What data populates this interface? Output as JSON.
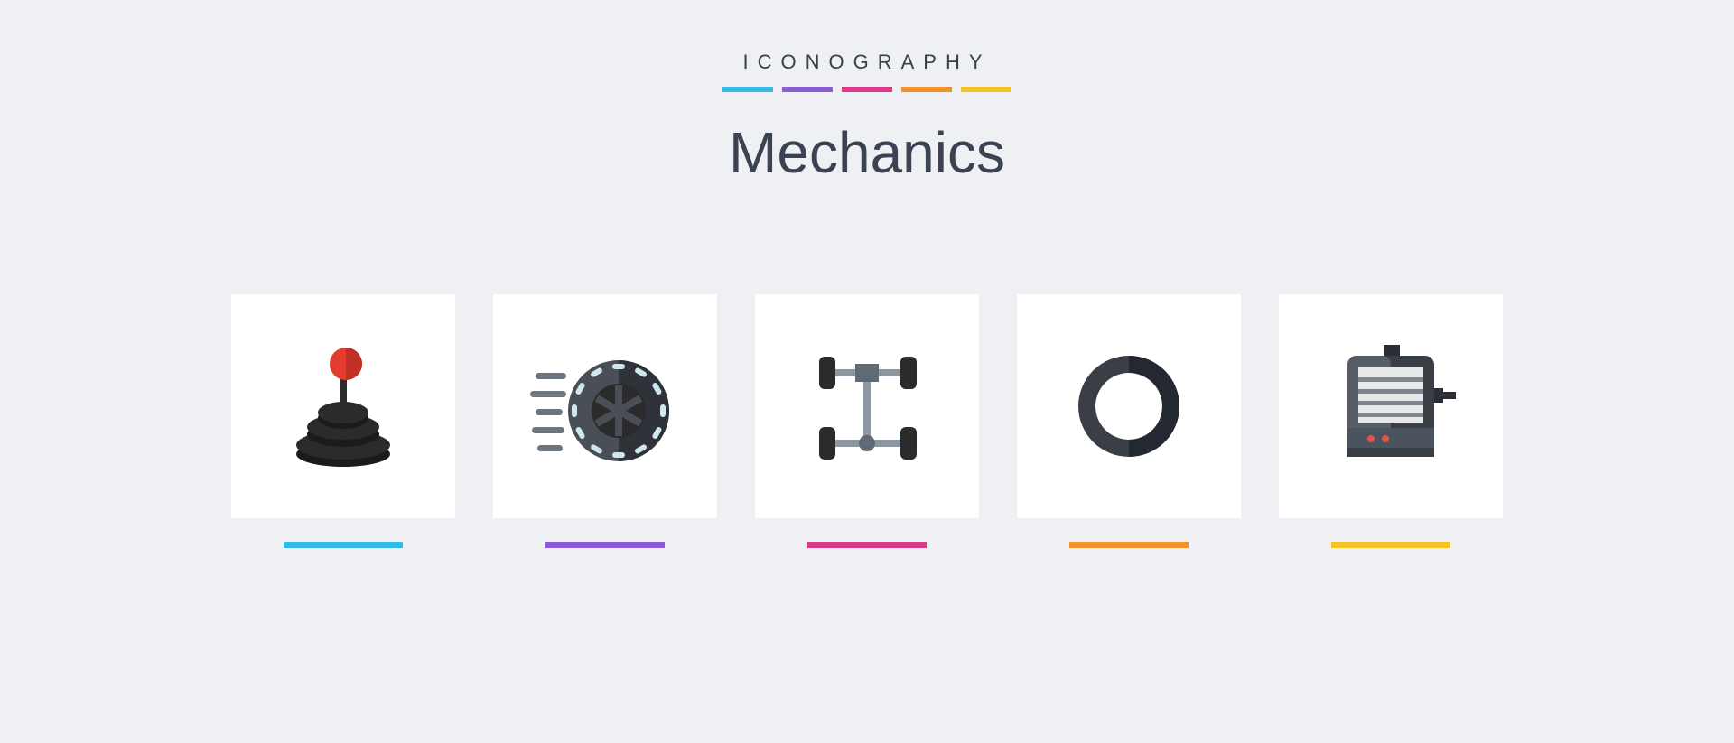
{
  "page": {
    "background": "#eef0f4",
    "card_bg": "#ffffff"
  },
  "header": {
    "eyebrow": "ICONOGRAPHY",
    "title": "Mechanics",
    "eyebrow_color": "#3a3f4a",
    "title_color": "#3b4251",
    "title_fontsize": 64,
    "eyebrow_fontsize": 22,
    "eyebrow_letter_spacing": 10
  },
  "accents": [
    "#35b9e6",
    "#8a5bd6",
    "#d93a8a",
    "#f0912a",
    "#f4c623"
  ],
  "icons": [
    {
      "name": "gear-shift-icon",
      "underline_color": "#35b9e6",
      "colors": {
        "knob": "#e33b2e",
        "knob_dark": "#c22f25",
        "body": "#2b2b2b",
        "body_dark": "#1b1b1b"
      }
    },
    {
      "name": "spinning-wheel-icon",
      "underline_color": "#8a5bd6",
      "colors": {
        "tire": "#4a4f57",
        "tire_dark": "#2f3339",
        "rim": "#2b2b2b",
        "mark": "#cfe8ee",
        "motion": "#6d7680"
      }
    },
    {
      "name": "chassis-icon",
      "underline_color": "#d93a8a",
      "colors": {
        "wheel": "#2b2b2b",
        "axle": "#8d97a2",
        "hub": "#5f6a76"
      }
    },
    {
      "name": "tire-icon",
      "underline_color": "#f0912a",
      "colors": {
        "outer": "#3a3f46",
        "inner": "#242830"
      }
    },
    {
      "name": "motor-icon",
      "underline_color": "#f4c623",
      "colors": {
        "body": "#3a3f46",
        "body_light": "#565d66",
        "grill_bg": "#e6e8ea",
        "grill_line": "#7e858d",
        "panel": "#4a535e",
        "led": "#e2544a",
        "shaft": "#2b2f35"
      }
    }
  ]
}
